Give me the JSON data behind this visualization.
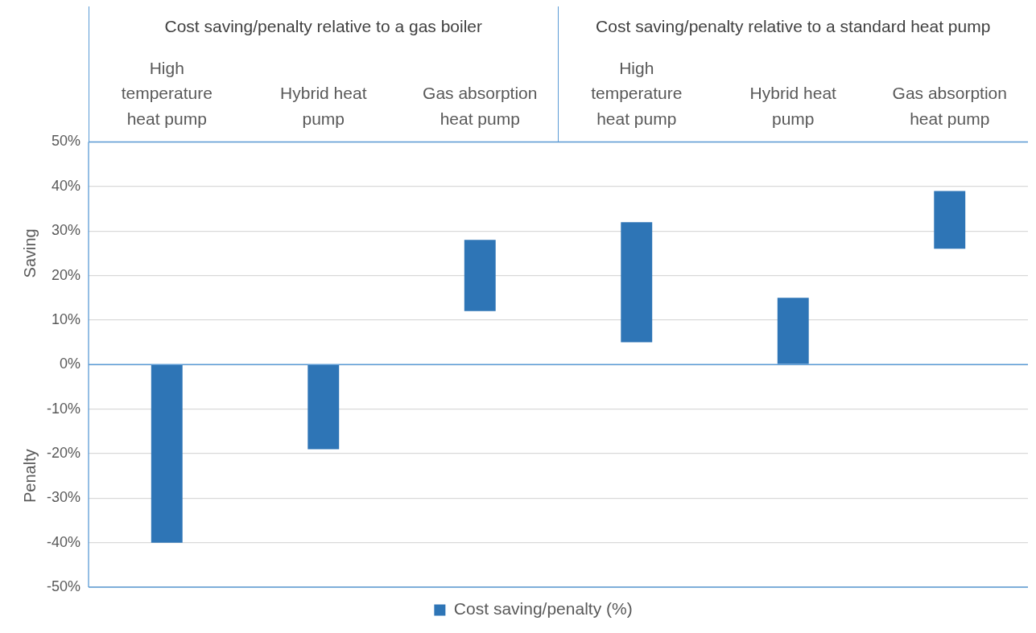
{
  "chart_data": {
    "type": "bar",
    "categories": [
      "High temperature heat pump",
      "Hybrid heat pump",
      "Gas absorption heat pump",
      "High temperature heat pump",
      "Hybrid heat pump",
      "Gas absorption heat pump"
    ],
    "series": [
      {
        "name": "Cost saving/penalty (%)",
        "color": "#2e75b6",
        "values": [
          -40,
          -19,
          16,
          27,
          15,
          13
        ],
        "base": [
          0,
          0,
          12,
          5,
          0,
          26
        ]
      }
    ],
    "ylim": [
      -50,
      50
    ],
    "yticks": [
      {
        "value": -50,
        "label": "-50%"
      },
      {
        "value": -40,
        "label": "-40%"
      },
      {
        "value": -30,
        "label": "-30%"
      },
      {
        "value": -20,
        "label": "-20%"
      },
      {
        "value": -10,
        "label": "-10%"
      },
      {
        "value": 0,
        "label": "0%"
      },
      {
        "value": 10,
        "label": "10%"
      },
      {
        "value": 20,
        "label": "20%"
      },
      {
        "value": 30,
        "label": "30%"
      },
      {
        "value": 40,
        "label": "40%"
      },
      {
        "value": 50,
        "label": "50%"
      }
    ],
    "grid": "y",
    "legend": "bottom",
    "ref_lines": [
      {
        "axis": "y",
        "value": 0,
        "color": "#5b9bd5"
      }
    ],
    "annotations": [
      "Cost saving/penalty relative to a gas boiler",
      "Cost saving/penalty relative to a standard heat pump",
      "Saving",
      "Penalty"
    ]
  }
}
